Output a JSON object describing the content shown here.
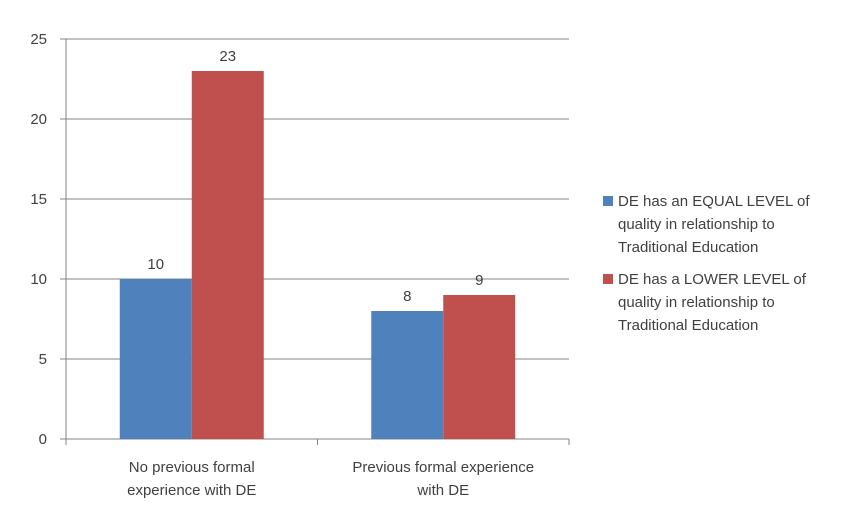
{
  "chart_data": {
    "type": "bar",
    "categories": [
      [
        "No previous formal",
        "experience with DE"
      ],
      [
        "Previous formal experience",
        "with DE"
      ]
    ],
    "series": [
      {
        "name": [
          "DE has an EQUAL LEVEL of",
          "quality in relationship to",
          "Traditional Education"
        ],
        "color": "#4F81BD",
        "values": [
          10,
          8
        ]
      },
      {
        "name": [
          "DE has a LOWER LEVEL of",
          "quality in relationship to",
          "Traditional Education"
        ],
        "color": "#C0504D",
        "values": [
          23,
          9
        ]
      }
    ],
    "ylim": [
      0,
      25
    ],
    "yticks": [
      0,
      5,
      10,
      15,
      20,
      25
    ],
    "grid": true,
    "legend": "right",
    "data_labels": true
  }
}
